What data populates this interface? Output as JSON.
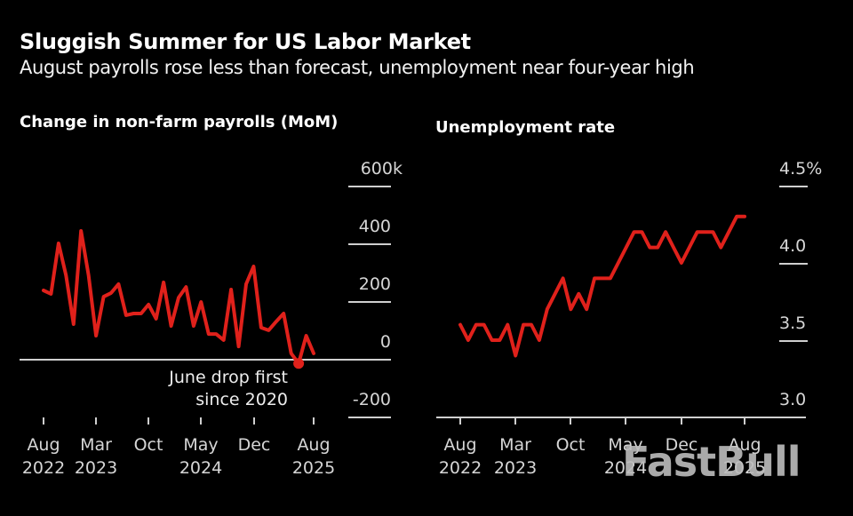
{
  "header": {
    "title": "Sluggish Summer for US Labor Market",
    "subtitle": "August payrolls rose less than forecast, unemployment near four-year high"
  },
  "watermark": "FastBull",
  "chart_data": [
    {
      "type": "line",
      "title": "Change in non-farm payrolls (MoM)",
      "xlabel": "",
      "ylabel": "",
      "ylim": [
        -200,
        600
      ],
      "y_ticks": [
        "600k",
        "400",
        "200",
        "0",
        "-200"
      ],
      "x_tick_labels": [
        [
          "Aug",
          "2022"
        ],
        [
          "Mar",
          "2023"
        ],
        [
          "Oct",
          ""
        ],
        [
          "May",
          "2024"
        ],
        [
          "Dec",
          ""
        ],
        [
          "Aug",
          "2025"
        ]
      ],
      "grid": true,
      "color": "#e0211b",
      "annotation": {
        "text_line1": "June drop first",
        "text_line2": "since 2020",
        "x": "Jun 2025",
        "y": -13
      },
      "x": [
        "Aug 2022",
        "Sep 2022",
        "Oct 2022",
        "Nov 2022",
        "Dec 2022",
        "Jan 2023",
        "Feb 2023",
        "Mar 2023",
        "Apr 2023",
        "May 2023",
        "Jun 2023",
        "Jul 2023",
        "Aug 2023",
        "Sep 2023",
        "Oct 2023",
        "Nov 2023",
        "Dec 2023",
        "Jan 2024",
        "Feb 2024",
        "Mar 2024",
        "Apr 2024",
        "May 2024",
        "Jun 2024",
        "Jul 2024",
        "Aug 2024",
        "Sep 2024",
        "Oct 2024",
        "Nov 2024",
        "Dec 2024",
        "Jan 2025",
        "Feb 2025",
        "Mar 2025",
        "Apr 2025",
        "May 2025",
        "Jun 2025",
        "Jul 2025",
        "Aug 2025"
      ],
      "values": [
        240,
        228,
        403,
        292,
        123,
        446,
        292,
        83,
        218,
        231,
        262,
        154,
        160,
        160,
        191,
        142,
        268,
        117,
        215,
        252,
        117,
        200,
        89,
        89,
        68,
        243,
        46,
        262,
        323,
        111,
        102,
        132,
        160,
        22,
        -13,
        83,
        22
      ]
    },
    {
      "type": "line",
      "title": "Unemployment rate",
      "xlabel": "",
      "ylabel": "",
      "ylim": [
        3.0,
        4.5
      ],
      "y_ticks": [
        "4.5%",
        "4.0",
        "3.5",
        "3.0"
      ],
      "x_tick_labels": [
        [
          "Aug",
          "2022"
        ],
        [
          "Mar",
          "2023"
        ],
        [
          "Oct",
          ""
        ],
        [
          "May",
          "2024"
        ],
        [
          "Dec",
          ""
        ],
        [
          "Aug",
          "2025"
        ]
      ],
      "grid": true,
      "color": "#e0211b",
      "x": [
        "Aug 2022",
        "Sep 2022",
        "Oct 2022",
        "Nov 2022",
        "Dec 2022",
        "Jan 2023",
        "Feb 2023",
        "Mar 2023",
        "Apr 2023",
        "May 2023",
        "Jun 2023",
        "Jul 2023",
        "Aug 2023",
        "Sep 2023",
        "Oct 2023",
        "Nov 2023",
        "Dec 2023",
        "Jan 2024",
        "Feb 2024",
        "Mar 2024",
        "Apr 2024",
        "May 2024",
        "Jun 2024",
        "Jul 2024",
        "Aug 2024",
        "Sep 2024",
        "Oct 2024",
        "Nov 2024",
        "Dec 2024",
        "Jan 2025",
        "Feb 2025",
        "Mar 2025",
        "Apr 2025",
        "May 2025",
        "Jun 2025",
        "Jul 2025",
        "Aug 2025"
      ],
      "values": [
        3.6,
        3.5,
        3.6,
        3.6,
        3.5,
        3.5,
        3.6,
        3.4,
        3.6,
        3.6,
        3.5,
        3.7,
        3.8,
        3.9,
        3.7,
        3.8,
        3.7,
        3.9,
        3.9,
        3.9,
        4.0,
        4.1,
        4.2,
        4.2,
        4.1,
        4.1,
        4.2,
        4.1,
        4.0,
        4.1,
        4.2,
        4.2,
        4.2,
        4.1,
        4.2,
        4.3,
        4.3
      ]
    }
  ]
}
